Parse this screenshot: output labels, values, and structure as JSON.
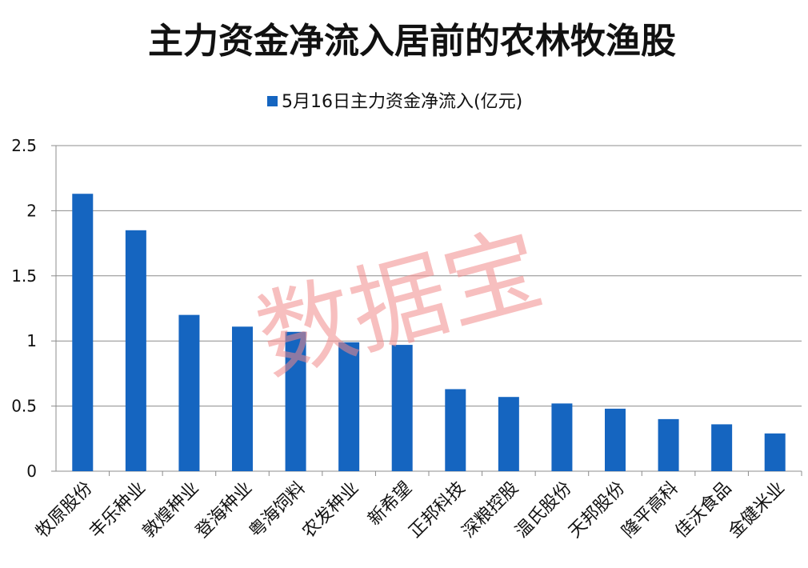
{
  "chart_data": {
    "type": "bar",
    "title": "主力资金净流入居前的农林牧渔股",
    "categories": [
      "牧原股份",
      "丰乐种业",
      "敦煌种业",
      "登海种业",
      "粤海饲料",
      "农发种业",
      "新希望",
      "正邦科技",
      "深粮控股",
      "温氏股份",
      "天邦股份",
      "隆平高科",
      "佳沃食品",
      "金健米业"
    ],
    "series": [
      {
        "name": "5月16日主力资金净流入(亿元)",
        "values": [
          2.13,
          1.85,
          1.2,
          1.11,
          1.07,
          0.99,
          0.97,
          0.63,
          0.57,
          0.52,
          0.48,
          0.4,
          0.36,
          0.29
        ]
      }
    ],
    "ylim": [
      0,
      2.5
    ],
    "yticks": [
      "0",
      "0.5",
      "1",
      "1.5",
      "2",
      "2.5"
    ],
    "grid": true,
    "legend": "top-center",
    "color": "#1565c0",
    "xlabel": "",
    "ylabel": ""
  },
  "watermark": "数据宝"
}
